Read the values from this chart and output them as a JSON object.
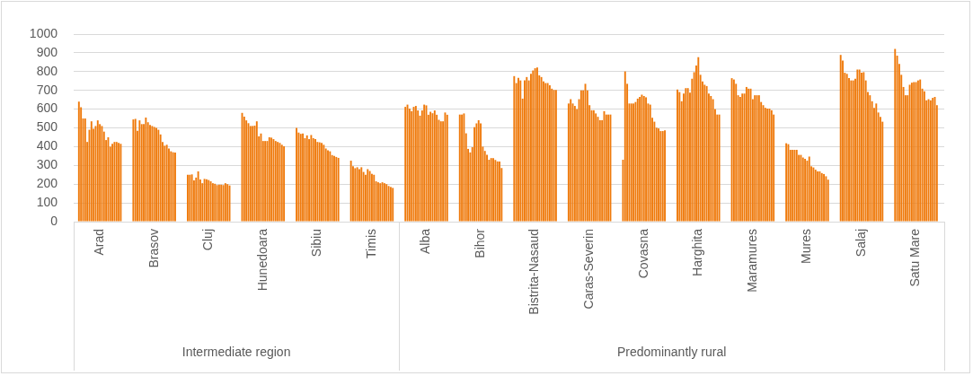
{
  "chart_data": {
    "type": "bar",
    "categories": [
      null,
      null,
      null,
      null,
      null,
      null,
      null,
      null,
      null,
      null,
      null,
      null,
      "Arad",
      null,
      null,
      null,
      null,
      null,
      null,
      null,
      null,
      null,
      null,
      null,
      null,
      null,
      null,
      null,
      null,
      null,
      null,
      null,
      null,
      null,
      null,
      null,
      null,
      null,
      "Brasov",
      null,
      null,
      null,
      null,
      null,
      null,
      null,
      null,
      null,
      null,
      null,
      null,
      null,
      null,
      null,
      null,
      null,
      null,
      null,
      null,
      null,
      null,
      null,
      null,
      null,
      "Cluj",
      null,
      null,
      null,
      null,
      null,
      null,
      null,
      null,
      null,
      null,
      null,
      null,
      null,
      null,
      null,
      null,
      null,
      null,
      null,
      null,
      null,
      null,
      null,
      null,
      null,
      "Hunedoara",
      null,
      null,
      null,
      null,
      null,
      null,
      null,
      null,
      null,
      null,
      null,
      null,
      null,
      null,
      null,
      null,
      null,
      null,
      null,
      null,
      null,
      null,
      null,
      null,
      null,
      "Sibiu",
      null,
      null,
      null,
      null,
      null,
      null,
      null,
      null,
      null,
      null,
      null,
      null,
      null,
      null,
      null,
      null,
      null,
      null,
      null,
      null,
      null,
      null,
      null,
      null,
      null,
      "Timis",
      null,
      null,
      null,
      null,
      null,
      null,
      null,
      null,
      null,
      null,
      null,
      null,
      null,
      null,
      null,
      null,
      null,
      null,
      null,
      null,
      null,
      null,
      null,
      null,
      null,
      "Alba",
      null,
      null,
      null,
      null,
      null,
      null,
      null,
      null,
      null,
      null,
      null,
      null,
      null,
      null,
      null,
      null,
      null,
      null,
      null,
      null,
      null,
      null,
      null,
      null,
      null,
      "Bihor",
      null,
      null,
      null,
      null,
      null,
      null,
      null,
      null,
      null,
      null,
      null,
      null,
      null,
      null,
      null,
      null,
      null,
      null,
      null,
      null,
      null,
      null,
      null,
      null,
      null,
      "Bistrita-Nasaud",
      null,
      null,
      null,
      null,
      null,
      null,
      null,
      null,
      null,
      null,
      null,
      null,
      null,
      null,
      null,
      null,
      null,
      null,
      null,
      null,
      null,
      null,
      null,
      null,
      null,
      "Caras-Severin",
      null,
      null,
      null,
      null,
      null,
      null,
      null,
      null,
      null,
      null,
      null,
      null,
      null,
      null,
      null,
      null,
      null,
      null,
      null,
      null,
      null,
      null,
      null,
      null,
      null,
      "Covasna",
      null,
      null,
      null,
      null,
      null,
      null,
      null,
      null,
      null,
      null,
      null,
      null,
      null,
      null,
      null,
      null,
      null,
      null,
      null,
      null,
      null,
      null,
      null,
      null,
      null,
      "Harghita",
      null,
      null,
      null,
      null,
      null,
      null,
      null,
      null,
      null,
      null,
      null,
      null,
      null,
      null,
      null,
      null,
      null,
      null,
      null,
      null,
      null,
      null,
      null,
      null,
      null,
      "Maramures",
      null,
      null,
      null,
      null,
      null,
      null,
      null,
      null,
      null,
      null,
      null,
      null,
      null,
      null,
      null,
      null,
      null,
      null,
      null,
      null,
      null,
      null,
      null,
      null,
      null,
      "Mures",
      null,
      null,
      null,
      null,
      null,
      null,
      null,
      null,
      null,
      null,
      null,
      null,
      null,
      null,
      null,
      null,
      null,
      null,
      null,
      null,
      null,
      null,
      null,
      null,
      null,
      "Salaj",
      null,
      null,
      null,
      null,
      null,
      null,
      null,
      null,
      null,
      null,
      null,
      null,
      null,
      null,
      null,
      null,
      null,
      null,
      null,
      null,
      null,
      null,
      null,
      null,
      null,
      "Satu Mare",
      null,
      null,
      null,
      null,
      null,
      null,
      null,
      null,
      null,
      null,
      null,
      null,
      null
    ],
    "values": [
      null,
      null,
      640,
      610,
      550,
      550,
      425,
      490,
      535,
      495,
      510,
      540,
      520,
      510,
      480,
      435,
      450,
      400,
      415,
      425,
      425,
      420,
      415,
      null,
      null,
      null,
      null,
      null,
      545,
      548,
      485,
      540,
      520,
      520,
      555,
      530,
      515,
      510,
      505,
      500,
      490,
      465,
      425,
      405,
      410,
      390,
      375,
      370,
      368,
      null,
      null,
      null,
      null,
      null,
      250,
      250,
      252,
      220,
      235,
      268,
      225,
      205,
      228,
      226,
      222,
      215,
      205,
      202,
      195,
      197,
      197,
      195,
      205,
      200,
      193,
      null,
      null,
      null,
      null,
      null,
      580,
      560,
      540,
      525,
      510,
      510,
      512,
      535,
      455,
      470,
      430,
      430,
      430,
      450,
      448,
      440,
      430,
      425,
      420,
      410,
      402,
      null,
      null,
      null,
      null,
      null,
      500,
      475,
      468,
      470,
      445,
      460,
      440,
      462,
      445,
      440,
      425,
      423,
      420,
      410,
      390,
      380,
      375,
      355,
      350,
      345,
      340,
      null,
      null,
      null,
      null,
      null,
      325,
      295,
      285,
      290,
      280,
      290,
      265,
      250,
      280,
      270,
      255,
      250,
      215,
      210,
      205,
      210,
      205,
      200,
      190,
      185,
      180,
      null,
      null,
      null,
      null,
      null,
      612,
      624,
      603,
      589,
      612,
      617,
      593,
      565,
      593,
      624,
      620,
      570,
      586,
      578,
      593,
      570,
      543,
      535,
      535,
      582,
      570,
      null,
      null,
      null,
      null,
      null,
      571,
      571,
      577,
      471,
      388,
      369,
      397,
      504,
      524,
      541,
      524,
      400,
      377,
      356,
      330,
      339,
      339,
      329,
      321,
      321,
      286,
      null,
      null,
      null,
      null,
      null,
      776,
      739,
      767,
      753,
      656,
      753,
      771,
      753,
      788,
      806,
      818,
      822,
      780,
      771,
      748,
      739,
      739,
      727,
      709,
      702,
      702,
      null,
      null,
      null,
      null,
      null,
      630,
      653,
      630,
      617,
      600,
      653,
      700,
      700,
      735,
      700,
      621,
      594,
      594,
      577,
      559,
      541,
      541,
      589,
      571,
      571,
      571,
      null,
      null,
      null,
      null,
      null,
      330,
      801,
      735,
      630,
      630,
      630,
      638,
      656,
      665,
      677,
      670,
      663,
      630,
      624,
      554,
      533,
      501,
      497,
      483,
      483,
      487,
      null,
      null,
      null,
      null,
      null,
      705,
      691,
      642,
      683,
      712,
      712,
      688,
      762,
      797,
      832,
      877,
      783,
      748,
      730,
      723,
      683,
      670,
      653,
      600,
      571,
      571,
      null,
      null,
      null,
      null,
      null,
      765,
      758,
      735,
      674,
      665,
      683,
      683,
      718,
      709,
      709,
      653,
      674,
      674,
      674,
      638,
      621,
      607,
      603,
      603,
      594,
      571,
      null,
      null,
      null,
      null,
      null,
      418,
      413,
      383,
      383,
      383,
      383,
      356,
      356,
      342,
      335,
      325,
      347,
      295,
      289,
      277,
      268,
      268,
      259,
      254,
      242,
      224,
      null,
      null,
      null,
      null,
      null,
      889,
      859,
      794,
      788,
      765,
      753,
      753,
      762,
      811,
      811,
      794,
      797,
      753,
      691,
      674,
      642,
      607,
      630,
      582,
      559,
      533,
      null,
      null,
      null,
      null,
      null,
      921,
      885,
      841,
      783,
      718,
      674,
      674,
      730,
      741,
      744,
      744,
      753,
      758,
      709,
      695,
      647,
      653,
      647,
      660,
      665,
      621,
      null,
      null,
      null
    ],
    "color": "#ef7a0c",
    "ylim": [
      0,
      1000
    ],
    "yticks": [
      0,
      100,
      200,
      300,
      400,
      500,
      600,
      700,
      800,
      900,
      1000
    ],
    "grid": "y",
    "annotations": [
      "Intermediate region",
      "Predominantly rural"
    ]
  }
}
